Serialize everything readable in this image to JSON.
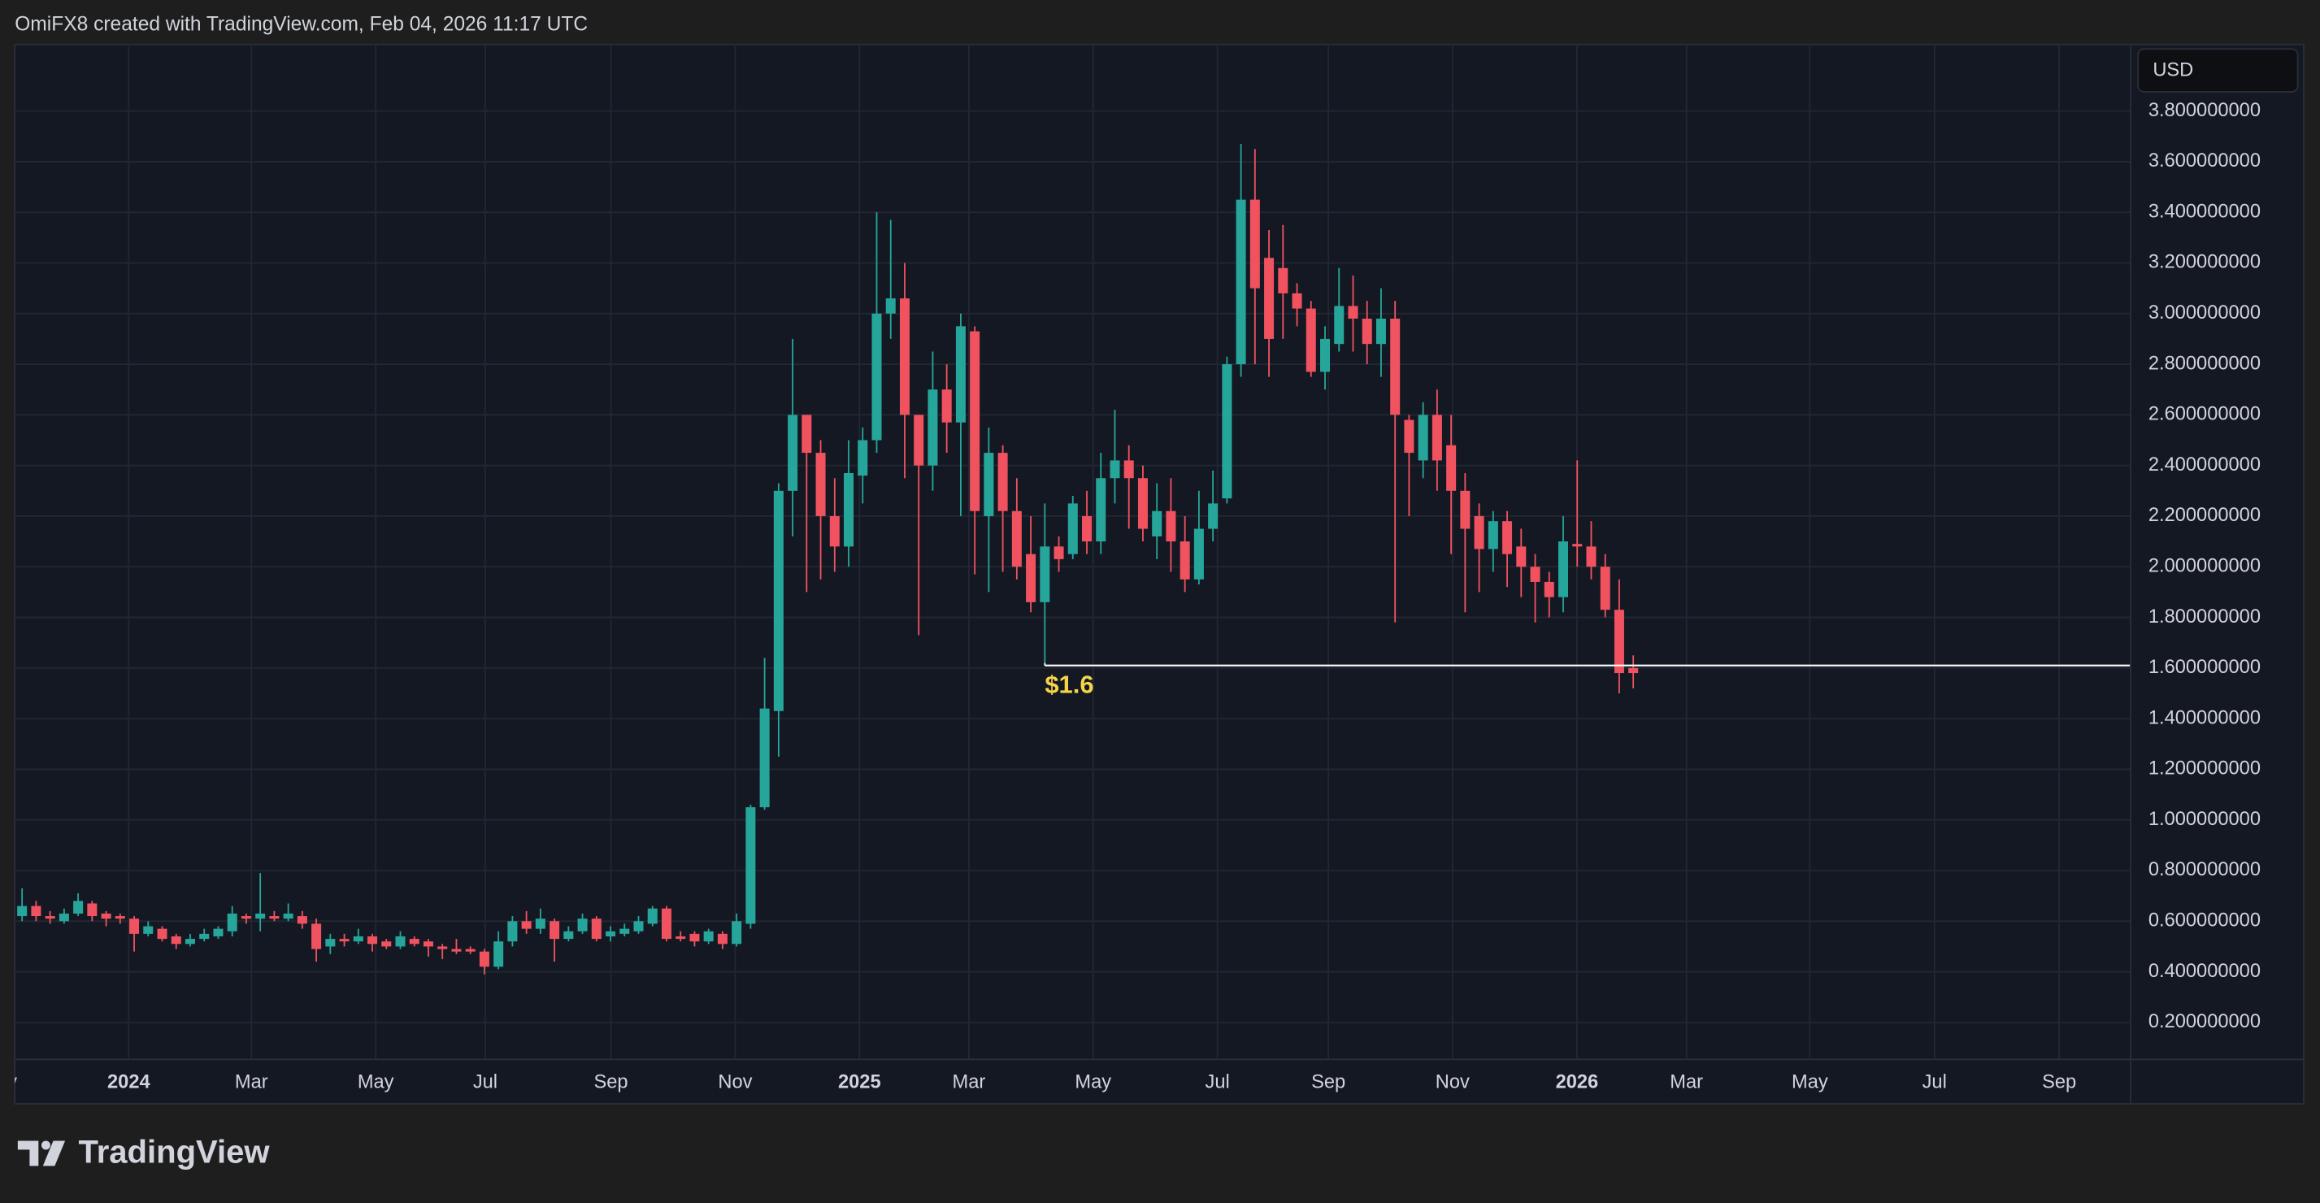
{
  "header": {
    "attribution": "OmiFX8 created with TradingView.com, Feb 04, 2026 11:17 UTC"
  },
  "logo": {
    "text": "TradingView"
  },
  "chart_data": {
    "type": "candlestick",
    "currency": "USD",
    "up_color": "#26a69a",
    "down_color": "#f0525f",
    "grid": true,
    "open": [
      0.62,
      0.66,
      0.62,
      0.6,
      0.63,
      0.67,
      0.63,
      0.62,
      0.61,
      0.55,
      0.57,
      0.54,
      0.51,
      0.53,
      0.54,
      0.56,
      0.62,
      0.61,
      0.62,
      0.61,
      0.62,
      0.59,
      0.5,
      0.53,
      0.52,
      0.54,
      0.52,
      0.5,
      0.53,
      0.52,
      0.5,
      0.49,
      0.49,
      0.48,
      0.42,
      0.52,
      0.6,
      0.57,
      0.6,
      0.53,
      0.56,
      0.61,
      0.54,
      0.55,
      0.56,
      0.59,
      0.65,
      0.54,
      0.55,
      0.52,
      0.55,
      0.51,
      0.59,
      1.05,
      1.43,
      2.3,
      2.6,
      2.45,
      2.2,
      2.08,
      2.36,
      2.5,
      3.0,
      3.06,
      2.6,
      2.4,
      2.7,
      2.57,
      2.93,
      2.2,
      2.45,
      2.22,
      2.05,
      1.86,
      2.08,
      2.05,
      2.2,
      2.1,
      2.35,
      2.42,
      2.35,
      2.12,
      2.22,
      2.1,
      1.95,
      2.15,
      2.27,
      2.8,
      3.45,
      3.22,
      3.18,
      3.08,
      3.02,
      2.77,
      2.88,
      3.03,
      2.98,
      2.88,
      2.98,
      2.58,
      2.42,
      2.6,
      2.48,
      2.3,
      2.2,
      2.07,
      2.18,
      2.08,
      2.0,
      1.94,
      1.88,
      2.09,
      2.08,
      2.0,
      1.83,
      1.6
    ],
    "high": [
      0.73,
      0.68,
      0.64,
      0.65,
      0.71,
      0.68,
      0.64,
      0.63,
      0.62,
      0.6,
      0.58,
      0.55,
      0.55,
      0.57,
      0.58,
      0.66,
      0.63,
      0.79,
      0.64,
      0.67,
      0.64,
      0.61,
      0.55,
      0.55,
      0.57,
      0.55,
      0.53,
      0.56,
      0.54,
      0.53,
      0.51,
      0.53,
      0.5,
      0.49,
      0.56,
      0.62,
      0.64,
      0.65,
      0.61,
      0.58,
      0.63,
      0.62,
      0.58,
      0.59,
      0.62,
      0.66,
      0.66,
      0.56,
      0.56,
      0.57,
      0.56,
      0.63,
      1.06,
      1.64,
      2.33,
      2.9,
      2.6,
      2.5,
      2.35,
      2.5,
      2.55,
      3.4,
      3.37,
      3.2,
      2.6,
      2.85,
      2.8,
      3.0,
      2.95,
      2.55,
      2.48,
      2.35,
      2.2,
      2.25,
      2.12,
      2.28,
      2.3,
      2.45,
      2.62,
      2.48,
      2.4,
      2.33,
      2.35,
      2.2,
      2.3,
      2.38,
      2.83,
      3.67,
      3.65,
      3.33,
      3.35,
      3.12,
      3.05,
      2.95,
      3.18,
      3.15,
      3.05,
      3.1,
      3.05,
      2.6,
      2.65,
      2.7,
      2.6,
      2.37,
      2.25,
      2.22,
      2.22,
      2.15,
      2.05,
      1.98,
      2.2,
      2.42,
      2.18,
      2.05,
      1.95,
      1.65
    ],
    "low": [
      0.6,
      0.6,
      0.59,
      0.59,
      0.62,
      0.6,
      0.58,
      0.59,
      0.48,
      0.54,
      0.52,
      0.49,
      0.5,
      0.52,
      0.53,
      0.54,
      0.59,
      0.56,
      0.6,
      0.6,
      0.57,
      0.44,
      0.47,
      0.5,
      0.51,
      0.48,
      0.49,
      0.49,
      0.5,
      0.46,
      0.45,
      0.47,
      0.47,
      0.39,
      0.41,
      0.5,
      0.55,
      0.55,
      0.44,
      0.52,
      0.55,
      0.52,
      0.52,
      0.54,
      0.55,
      0.58,
      0.52,
      0.52,
      0.5,
      0.51,
      0.49,
      0.5,
      0.57,
      1.04,
      1.25,
      2.12,
      1.9,
      1.95,
      1.98,
      2.0,
      2.25,
      2.45,
      2.9,
      2.35,
      1.73,
      2.3,
      2.45,
      2.2,
      1.97,
      1.9,
      1.98,
      1.95,
      1.82,
      1.62,
      1.98,
      2.03,
      2.05,
      2.05,
      2.25,
      2.15,
      2.1,
      2.03,
      1.98,
      1.9,
      1.93,
      2.1,
      2.25,
      2.75,
      2.8,
      2.75,
      2.9,
      2.95,
      2.75,
      2.7,
      2.85,
      2.85,
      2.8,
      2.75,
      1.78,
      2.2,
      2.35,
      2.3,
      2.05,
      1.82,
      1.9,
      1.98,
      1.92,
      1.88,
      1.78,
      1.8,
      1.82,
      2.0,
      1.95,
      1.8,
      1.5,
      1.52
    ],
    "close": [
      0.66,
      0.62,
      0.61,
      0.63,
      0.68,
      0.62,
      0.61,
      0.61,
      0.55,
      0.58,
      0.53,
      0.51,
      0.53,
      0.55,
      0.57,
      0.63,
      0.61,
      0.63,
      0.61,
      0.63,
      0.59,
      0.49,
      0.53,
      0.52,
      0.54,
      0.51,
      0.5,
      0.54,
      0.51,
      0.5,
      0.49,
      0.48,
      0.48,
      0.42,
      0.52,
      0.6,
      0.57,
      0.61,
      0.53,
      0.56,
      0.61,
      0.53,
      0.56,
      0.57,
      0.6,
      0.65,
      0.53,
      0.53,
      0.52,
      0.56,
      0.51,
      0.6,
      1.05,
      1.44,
      2.3,
      2.6,
      2.45,
      2.2,
      2.08,
      2.37,
      2.5,
      3.0,
      3.06,
      2.6,
      2.4,
      2.7,
      2.57,
      2.95,
      2.22,
      2.45,
      2.22,
      2.0,
      1.86,
      2.08,
      2.03,
      2.25,
      2.1,
      2.35,
      2.42,
      2.35,
      2.15,
      2.22,
      2.1,
      1.95,
      2.15,
      2.25,
      2.8,
      3.45,
      3.1,
      2.9,
      3.08,
      3.02,
      2.77,
      2.9,
      3.03,
      2.98,
      2.88,
      2.98,
      2.6,
      2.45,
      2.6,
      2.42,
      2.3,
      2.15,
      2.07,
      2.18,
      2.05,
      2.0,
      1.94,
      1.88,
      2.1,
      2.08,
      2.0,
      1.83,
      1.58,
      1.58
    ],
    "xlim": [
      -0.52,
      150.5
    ],
    "xticks": [
      {
        "value": -1.58,
        "label": "Nov"
      },
      {
        "value": 7.61,
        "label": "2024"
      },
      {
        "value": 16.37,
        "label": "Mar"
      },
      {
        "value": 25.24,
        "label": "May"
      },
      {
        "value": 33.06,
        "label": "Jul"
      },
      {
        "value": 42.03,
        "label": "Sep"
      },
      {
        "value": 50.9,
        "label": "Nov"
      },
      {
        "value": 59.77,
        "label": "2025"
      },
      {
        "value": 67.58,
        "label": "Mar"
      },
      {
        "value": 76.45,
        "label": "May"
      },
      {
        "value": 85.32,
        "label": "Jul"
      },
      {
        "value": 93.24,
        "label": "Sep"
      },
      {
        "value": 102.1,
        "label": "Nov"
      },
      {
        "value": 110.98,
        "label": "2026"
      },
      {
        "value": 118.8,
        "label": "Mar"
      },
      {
        "value": 127.6,
        "label": "May"
      },
      {
        "value": 136.5,
        "label": "Jul"
      },
      {
        "value": 145.4,
        "label": "Sep"
      }
    ],
    "ylim": [
      0.054,
      4.063
    ],
    "yticks": [
      {
        "value": 0.2,
        "label": "0.200000000"
      },
      {
        "value": 0.4,
        "label": "0.400000000"
      },
      {
        "value": 0.6,
        "label": "0.600000000"
      },
      {
        "value": 0.8,
        "label": "0.800000000"
      },
      {
        "value": 1.0,
        "label": "1.000000000"
      },
      {
        "value": 1.2,
        "label": "1.200000000"
      },
      {
        "value": 1.4,
        "label": "1.400000000"
      },
      {
        "value": 1.6,
        "label": "1.600000000"
      },
      {
        "value": 1.8,
        "label": "1.800000000"
      },
      {
        "value": 2.0,
        "label": "2.000000000"
      },
      {
        "value": 2.2,
        "label": "2.200000000"
      },
      {
        "value": 2.4,
        "label": "2.400000000"
      },
      {
        "value": 2.6,
        "label": "2.600000000"
      },
      {
        "value": 2.8,
        "label": "2.800000000"
      },
      {
        "value": 3.0,
        "label": "3.000000000"
      },
      {
        "value": 3.2,
        "label": "3.200000000"
      },
      {
        "value": 3.4,
        "label": "3.400000000"
      },
      {
        "value": 3.6,
        "label": "3.600000000"
      },
      {
        "value": 3.8,
        "label": "3.800000000"
      }
    ],
    "hline": {
      "label": "$1.6",
      "y": 1.61,
      "x": 73,
      "color": "#ffffff",
      "label_color": "#f5d547"
    }
  }
}
